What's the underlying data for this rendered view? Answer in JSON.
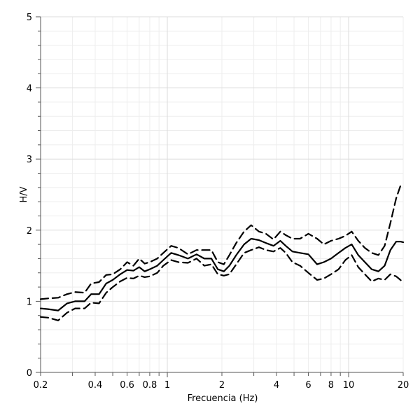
{
  "chart_data": {
    "type": "line",
    "xlabel": "Frecuencia (Hz)",
    "ylabel": "H/V",
    "xscale": "log",
    "xlim": [
      0.2,
      20
    ],
    "ylim": [
      0,
      5
    ],
    "grid": true,
    "x_ticks": [
      {
        "value": 0.2,
        "label": "0.2"
      },
      {
        "value": 0.4,
        "label": "0.4"
      },
      {
        "value": 0.6,
        "label": "0.6"
      },
      {
        "value": 0.8,
        "label": "0.8"
      },
      {
        "value": 1,
        "label": "1"
      },
      {
        "value": 2,
        "label": "2"
      },
      {
        "value": 4,
        "label": "4"
      },
      {
        "value": 6,
        "label": "6"
      },
      {
        "value": 8,
        "label": "8"
      },
      {
        "value": 10,
        "label": "10"
      },
      {
        "value": 20,
        "label": "20"
      }
    ],
    "y_ticks": [
      {
        "value": 0,
        "label": "0"
      },
      {
        "value": 1,
        "label": "1"
      },
      {
        "value": 2,
        "label": "2"
      },
      {
        "value": 3,
        "label": "3"
      },
      {
        "value": 4,
        "label": "4"
      },
      {
        "value": 5,
        "label": "5"
      }
    ],
    "series": [
      {
        "style": "solid",
        "x": [
          0.2,
          0.22,
          0.25,
          0.28,
          0.31,
          0.35,
          0.38,
          0.42,
          0.46,
          0.5,
          0.55,
          0.6,
          0.65,
          0.7,
          0.75,
          0.8,
          0.88,
          0.95,
          1.05,
          1.15,
          1.3,
          1.45,
          1.6,
          1.75,
          1.9,
          2.05,
          2.2,
          2.4,
          2.65,
          2.9,
          3.2,
          3.5,
          3.85,
          4.2,
          4.5,
          4.9,
          5.4,
          6.0,
          6.7,
          7.3,
          8.0,
          8.8,
          9.6,
          10.4,
          11.3,
          12.3,
          13.4,
          14.6,
          15.8,
          17.0,
          18.3,
          19.3,
          20.0
        ],
        "y": [
          0.9,
          0.89,
          0.87,
          0.97,
          1.0,
          1.0,
          1.1,
          1.1,
          1.25,
          1.3,
          1.38,
          1.44,
          1.43,
          1.48,
          1.42,
          1.45,
          1.5,
          1.58,
          1.68,
          1.65,
          1.6,
          1.66,
          1.6,
          1.6,
          1.45,
          1.42,
          1.5,
          1.65,
          1.8,
          1.88,
          1.86,
          1.82,
          1.78,
          1.85,
          1.78,
          1.7,
          1.68,
          1.66,
          1.52,
          1.55,
          1.6,
          1.68,
          1.75,
          1.8,
          1.65,
          1.55,
          1.45,
          1.42,
          1.5,
          1.72,
          1.84,
          1.84,
          1.83
        ]
      },
      {
        "style": "dashed",
        "x": [
          0.2,
          0.22,
          0.25,
          0.28,
          0.31,
          0.35,
          0.38,
          0.42,
          0.46,
          0.5,
          0.55,
          0.6,
          0.65,
          0.7,
          0.75,
          0.8,
          0.88,
          0.95,
          1.05,
          1.15,
          1.3,
          1.45,
          1.6,
          1.75,
          1.9,
          2.05,
          2.2,
          2.4,
          2.65,
          2.9,
          3.2,
          3.5,
          3.85,
          4.2,
          4.5,
          4.9,
          5.4,
          6.0,
          6.7,
          7.3,
          8.0,
          8.8,
          9.6,
          10.4,
          11.3,
          12.3,
          13.4,
          14.6,
          15.8,
          17.0,
          18.3,
          19.3,
          20.0
        ],
        "y": [
          1.03,
          1.04,
          1.05,
          1.1,
          1.13,
          1.12,
          1.25,
          1.27,
          1.37,
          1.38,
          1.45,
          1.55,
          1.5,
          1.6,
          1.53,
          1.55,
          1.6,
          1.68,
          1.78,
          1.75,
          1.66,
          1.72,
          1.72,
          1.72,
          1.55,
          1.52,
          1.65,
          1.82,
          1.98,
          2.07,
          1.98,
          1.95,
          1.87,
          1.98,
          1.93,
          1.88,
          1.88,
          1.95,
          1.88,
          1.8,
          1.85,
          1.88,
          1.92,
          1.98,
          1.85,
          1.75,
          1.68,
          1.65,
          1.78,
          2.1,
          2.45,
          2.62,
          2.64
        ]
      },
      {
        "style": "dashed",
        "x": [
          0.2,
          0.22,
          0.25,
          0.28,
          0.31,
          0.35,
          0.38,
          0.42,
          0.46,
          0.5,
          0.55,
          0.6,
          0.65,
          0.7,
          0.75,
          0.8,
          0.88,
          0.95,
          1.05,
          1.15,
          1.3,
          1.45,
          1.6,
          1.75,
          1.9,
          2.05,
          2.2,
          2.4,
          2.65,
          2.9,
          3.2,
          3.5,
          3.85,
          4.2,
          4.5,
          4.9,
          5.4,
          6.0,
          6.7,
          7.3,
          8.0,
          8.8,
          9.6,
          10.4,
          11.3,
          12.3,
          13.4,
          14.6,
          15.8,
          17.0,
          18.3,
          19.3,
          20.0
        ],
        "y": [
          0.78,
          0.77,
          0.73,
          0.84,
          0.9,
          0.9,
          0.98,
          0.97,
          1.12,
          1.2,
          1.28,
          1.33,
          1.32,
          1.36,
          1.34,
          1.35,
          1.4,
          1.5,
          1.58,
          1.55,
          1.54,
          1.6,
          1.5,
          1.52,
          1.38,
          1.36,
          1.38,
          1.52,
          1.68,
          1.72,
          1.76,
          1.72,
          1.7,
          1.75,
          1.68,
          1.55,
          1.5,
          1.4,
          1.3,
          1.32,
          1.38,
          1.45,
          1.58,
          1.65,
          1.48,
          1.38,
          1.28,
          1.32,
          1.3,
          1.38,
          1.35,
          1.3,
          1.27
        ]
      }
    ]
  }
}
